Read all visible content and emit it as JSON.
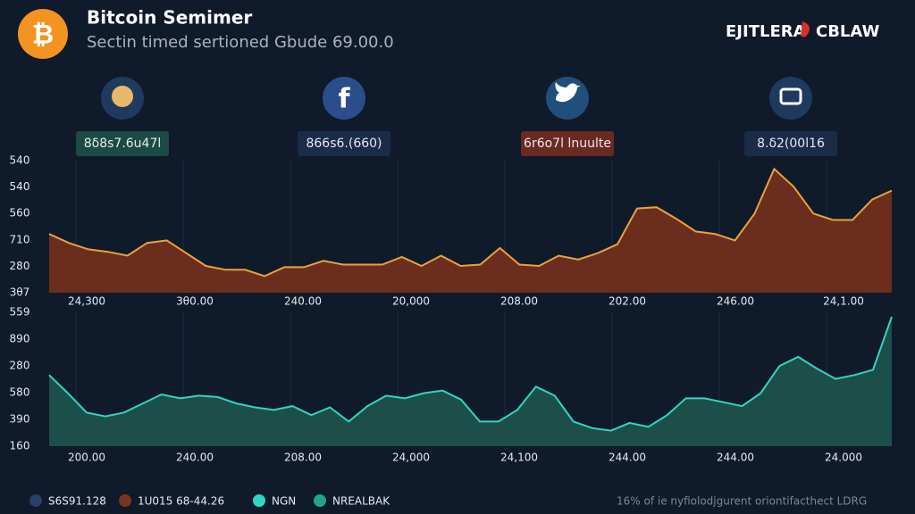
{
  "header": {
    "title": "Bitcoin Semimer",
    "subtitle": "Sectin timed sertioned Gbude 69.00.0",
    "brand": [
      "EJITLERA",
      "CBLAW"
    ]
  },
  "badges": [
    "8δ8s7.6u47l",
    "866s6.(660)",
    "6r6o7l lnuulte",
    "8.δ2(00l16"
  ],
  "panels": [
    {
      "y_labels": [
        "540",
        "540",
        "560",
        "710",
        "280",
        "3θ7"
      ],
      "x_labels": [
        "24,300",
        "3θ0.00",
        "240.00",
        "20,000",
        "208.00",
        "202.00",
        "246.00",
        "24,1.00"
      ],
      "ylim": [
        0,
        100
      ],
      "values": [
        46,
        39,
        34,
        32,
        29,
        39,
        41,
        31,
        21,
        18,
        18,
        13,
        20,
        20,
        25,
        22,
        22,
        22,
        28,
        21,
        29,
        21,
        22,
        35,
        22,
        21,
        29,
        26,
        31,
        38,
        66,
        67,
        58,
        48,
        46,
        41,
        62,
        97,
        83,
        62,
        57,
        57,
        73,
        80
      ],
      "line_color": "#e8a33b",
      "fill_color": "#6b2e1e"
    },
    {
      "y_labels": [
        "559",
        "890",
        "280",
        "580",
        "390",
        "160"
      ],
      "x_labels": [
        "200.00",
        "240.00",
        "208.00",
        "24,000",
        "24,100",
        "244.00",
        "244.00",
        "24.000"
      ],
      "ylim": [
        0,
        100
      ],
      "values": [
        55,
        41,
        26,
        23,
        26,
        33,
        40,
        37,
        39,
        38,
        33,
        30,
        28,
        31,
        24,
        30,
        19,
        31,
        39,
        37,
        41,
        43,
        36,
        19,
        19,
        28,
        46,
        39,
        19,
        14,
        12,
        18,
        15,
        24,
        37,
        37,
        34,
        31,
        41,
        62,
        69,
        60,
        52,
        55,
        59,
        100
      ],
      "line_color": "#2fd6c3",
      "fill_color": "#1d4f4a"
    }
  ],
  "legend": [
    {
      "name": "S6S91.128",
      "color": "#2a3f66"
    },
    {
      "name": "1U015 68-44.26",
      "color": "#7a3520"
    },
    {
      "name": "NGN",
      "color": "#2fd6c3"
    },
    {
      "name": "NREALBAK",
      "color": "#1fa58a"
    }
  ],
  "footer": "16% of ie nyfiolodjgurent oriontifacthect LDRG"
}
